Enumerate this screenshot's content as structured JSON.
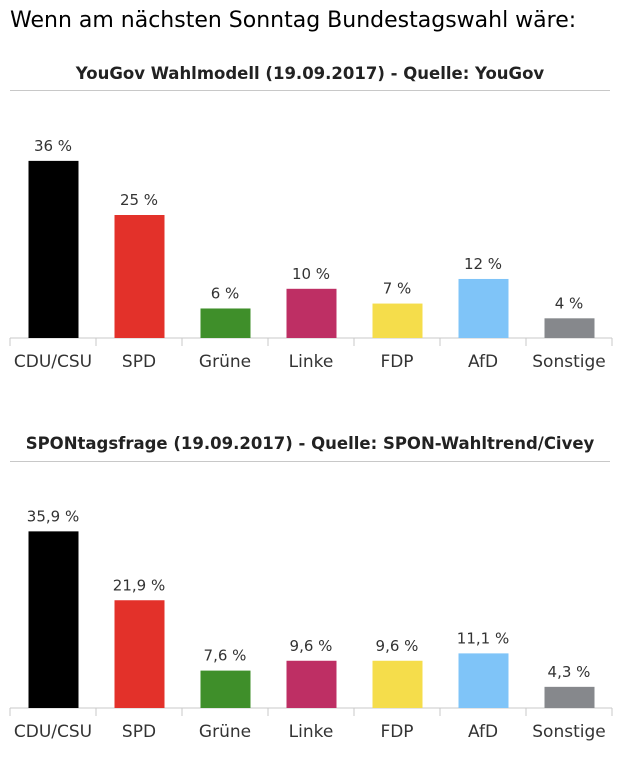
{
  "title": "Wenn am nächsten Sonntag Bundestagswahl wäre:",
  "chart_data": [
    {
      "type": "bar",
      "title": "YouGov Wahlmodell (19.09.2017) - Quelle: YouGov",
      "categories": [
        "CDU/CSU",
        "SPD",
        "Grüne",
        "Linke",
        "FDP",
        "AfD",
        "Sonstige"
      ],
      "values": [
        36,
        25,
        6,
        10,
        7,
        12,
        4
      ],
      "labels": [
        "36 %",
        "25 %",
        "6 %",
        "10 %",
        "7 %",
        "12 %",
        "4 %"
      ],
      "colors": [
        "#000000",
        "#e3312a",
        "#3f8f2a",
        "#be2f64",
        "#f5dd4b",
        "#7fc4f8",
        "#86888c"
      ],
      "ylim": [
        0,
        40
      ],
      "grid": false
    },
    {
      "type": "bar",
      "title": "SPONtagsfrage (19.09.2017) - Quelle: SPON-Wahltrend/Civey",
      "categories": [
        "CDU/CSU",
        "SPD",
        "Grüne",
        "Linke",
        "FDP",
        "AfD",
        "Sonstige"
      ],
      "values": [
        35.9,
        21.9,
        7.6,
        9.6,
        9.6,
        11.1,
        4.3
      ],
      "labels": [
        "35,9 %",
        "21,9 %",
        "7,6 %",
        "9,6 %",
        "9,6 %",
        "11,1 %",
        "4,3 %"
      ],
      "colors": [
        "#000000",
        "#e3312a",
        "#3f8f2a",
        "#be2f64",
        "#f5dd4b",
        "#7fc4f8",
        "#86888c"
      ],
      "ylim": [
        0,
        40
      ],
      "grid": false
    }
  ]
}
